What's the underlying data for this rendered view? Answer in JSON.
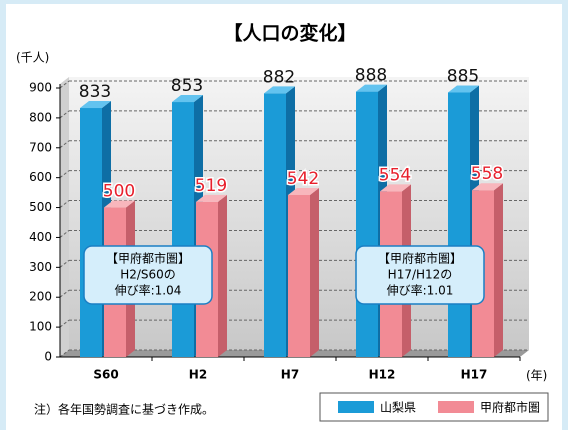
{
  "chart_data": {
    "type": "bar3d",
    "title": "【人口の変化】",
    "y_unit": "(千人)",
    "x_unit": "(年)",
    "categories": [
      "S60",
      "H2",
      "H7",
      "H12",
      "H17"
    ],
    "series": [
      {
        "name": "山梨県",
        "color": "#1b9bd7",
        "values": [
          833,
          853,
          882,
          888,
          885
        ]
      },
      {
        "name": "甲府都市圏",
        "color": "#f28b95",
        "values": [
          500,
          519,
          542,
          554,
          558
        ]
      }
    ],
    "ylim": [
      0,
      900
    ],
    "yticks": [
      0,
      100,
      200,
      300,
      400,
      500,
      600,
      700,
      800,
      900
    ],
    "grid": true,
    "annotations": [
      {
        "lines": [
          "【甲府都市圏】",
          "H2/S60の",
          "伸び率:1.04"
        ]
      },
      {
        "lines": [
          "【甲府都市圏】",
          "H17/H12の",
          "伸び率:1.01"
        ]
      }
    ],
    "footnote": "注）各年国勢調査に基づき作成。"
  }
}
